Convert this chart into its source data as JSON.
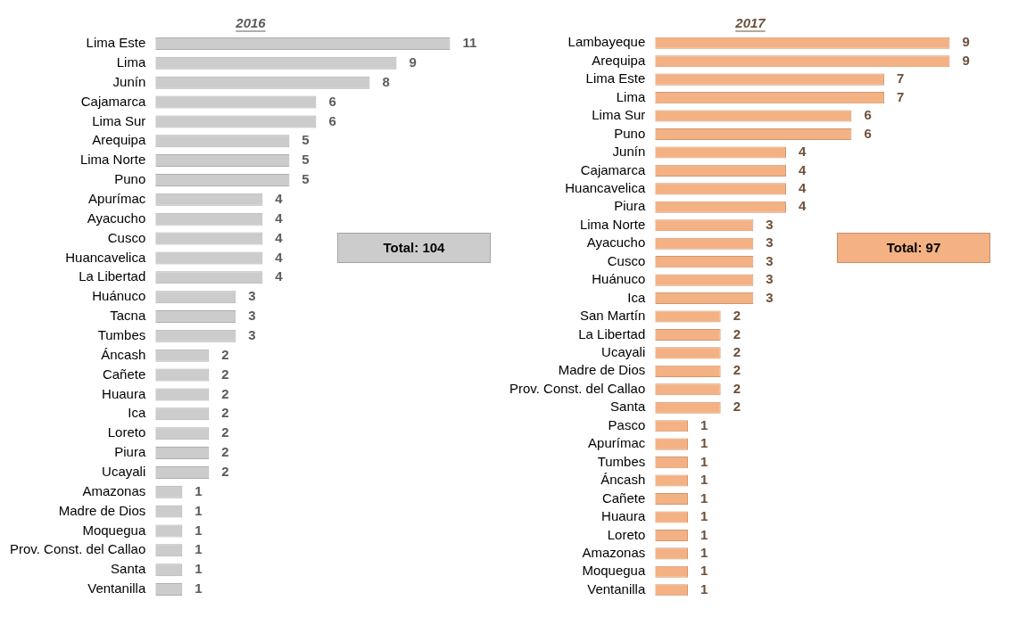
{
  "chart_data": [
    {
      "type": "bar",
      "orientation": "horizontal",
      "title": "2016",
      "data_labels": true,
      "annotations": [
        "Total: 104"
      ],
      "categories": [
        "Lima Este",
        "Lima",
        "Junín",
        "Cajamarca",
        "Lima Sur",
        "Arequipa",
        "Lima Norte",
        "Puno",
        "Apurímac",
        "Ayacucho",
        "Cusco",
        "Huancavelica",
        "La Libertad",
        "Huánuco",
        "Tacna",
        "Tumbes",
        "Áncash",
        "Cañete",
        "Huaura",
        "Ica",
        "Loreto",
        "Piura",
        "Ucayali",
        "Amazonas",
        "Madre de Dios",
        "Moquegua",
        "Prov. Const. del Callao",
        "Santa",
        "Ventanilla"
      ],
      "series": [
        {
          "color": "#cccccc",
          "values": [
            11,
            9,
            8,
            6,
            6,
            5,
            5,
            5,
            4,
            4,
            4,
            4,
            4,
            3,
            3,
            3,
            2,
            2,
            2,
            2,
            2,
            2,
            2,
            1,
            1,
            1,
            1,
            1,
            1
          ]
        }
      ]
    },
    {
      "type": "bar",
      "orientation": "horizontal",
      "title": "2017",
      "data_labels": true,
      "annotations": [
        "Total: 97"
      ],
      "categories": [
        "Lambayeque",
        "Arequipa",
        "Lima Este",
        "Lima",
        "Lima Sur",
        "Puno",
        "Junín",
        "Cajamarca",
        "Huancavelica",
        "Piura",
        "Lima Norte",
        "Ayacucho",
        "Cusco",
        "Huánuco",
        "Ica",
        "San Martín",
        "La Libertad",
        "Ucayali",
        "Madre de Dios",
        "Prov. Const. del Callao",
        "Santa",
        "Pasco",
        "Apurímac",
        "Tumbes",
        "Áncash",
        "Cañete",
        "Huaura",
        "Loreto",
        "Amazonas",
        "Moquegua",
        "Ventanilla"
      ],
      "series": [
        {
          "color": "#f4b183",
          "values": [
            9,
            9,
            7,
            7,
            6,
            6,
            4,
            4,
            4,
            4,
            3,
            3,
            3,
            3,
            3,
            2,
            2,
            2,
            2,
            2,
            2,
            1,
            1,
            1,
            1,
            1,
            1,
            1,
            1,
            1,
            1
          ]
        }
      ]
    }
  ]
}
